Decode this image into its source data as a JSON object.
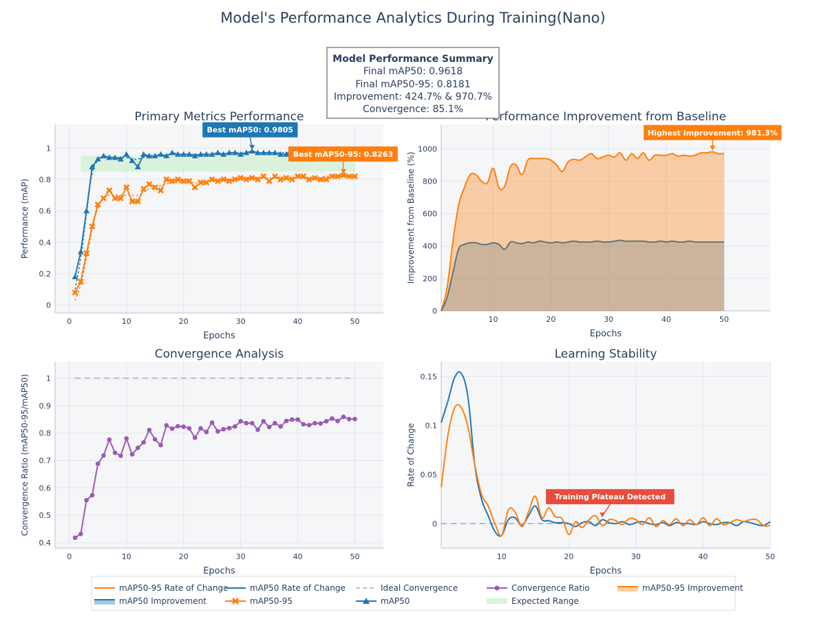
{
  "title": "Model's Performance Analytics During Training(Nano)",
  "summary": {
    "heading": "Model Performance Summary",
    "lines": [
      "Final mAP50: 0.9618",
      "Final mAP50-95: 0.8181",
      "Improvement: 424.7% & 970.7%",
      "Convergence: 85.1%"
    ]
  },
  "colors": {
    "map50": "#1f77b4",
    "map5095": "#ff7f0e",
    "convergence": "#9b59b6",
    "plateau": "#e74c3c",
    "expected": "#c8f0c8",
    "ideal": "#b0a4cc"
  },
  "legend": {
    "items": [
      {
        "label": "mAP50-95 Rate of Change",
        "kind": "line",
        "color": "#ff7f0e"
      },
      {
        "label": "mAP50 Rate of Change",
        "kind": "line",
        "color": "#1f77b4"
      },
      {
        "label": "Ideal Convergence",
        "kind": "dash",
        "color": "#b0a4cc"
      },
      {
        "label": "Convergence Ratio",
        "kind": "dot",
        "color": "#9b59b6"
      },
      {
        "label": "mAP50-95 Improvement",
        "kind": "fill",
        "color": "#ff7f0e"
      },
      {
        "label": "mAP50 Improvement",
        "kind": "fill",
        "color": "#1f77b4"
      },
      {
        "label": "mAP50-95",
        "kind": "cross",
        "color": "#ff7f0e"
      },
      {
        "label": "mAP50",
        "kind": "tri",
        "color": "#1f77b4"
      },
      {
        "label": "Expected Range",
        "kind": "band",
        "color": "#c8f0c8"
      }
    ]
  },
  "chart_data": [
    {
      "type": "line",
      "title": "Primary Metrics Performance",
      "xlabel": "Epochs",
      "ylabel": "Performance (mAP)",
      "xlim": [
        -2.5,
        55
      ],
      "ylim": [
        -0.05,
        1.15
      ],
      "xticks": [
        0,
        10,
        20,
        30,
        40,
        50
      ],
      "yticks": [
        0,
        0.2,
        0.4,
        0.6,
        0.8,
        1
      ],
      "grid": true,
      "expected_range": {
        "x": [
          2,
          50
        ],
        "y": [
          0.85,
          0.95
        ]
      },
      "x": [
        1,
        2,
        3,
        4,
        5,
        6,
        7,
        8,
        9,
        10,
        11,
        12,
        13,
        14,
        15,
        16,
        17,
        18,
        19,
        20,
        21,
        22,
        23,
        24,
        25,
        26,
        27,
        28,
        29,
        30,
        31,
        32,
        33,
        34,
        35,
        36,
        37,
        38,
        39,
        40,
        41,
        42,
        43,
        44,
        45,
        46,
        47,
        48,
        49,
        50
      ],
      "series": [
        {
          "name": "mAP50",
          "marker": "triangle",
          "values": [
            0.18,
            0.34,
            0.6,
            0.88,
            0.93,
            0.95,
            0.94,
            0.94,
            0.93,
            0.96,
            0.92,
            0.88,
            0.96,
            0.95,
            0.95,
            0.96,
            0.95,
            0.97,
            0.96,
            0.96,
            0.96,
            0.95,
            0.96,
            0.96,
            0.96,
            0.97,
            0.96,
            0.97,
            0.97,
            0.96,
            0.97,
            0.9805,
            0.97,
            0.97,
            0.97,
            0.97,
            0.96,
            0.96,
            0.97,
            0.96,
            0.97,
            0.96,
            0.96,
            0.97,
            0.96,
            0.96,
            0.96,
            0.97,
            0.96,
            0.96
          ]
        },
        {
          "name": "mAP50-95",
          "marker": "x",
          "values": [
            0.08,
            0.15,
            0.33,
            0.5,
            0.64,
            0.68,
            0.73,
            0.68,
            0.68,
            0.75,
            0.66,
            0.66,
            0.74,
            0.77,
            0.75,
            0.73,
            0.8,
            0.79,
            0.8,
            0.79,
            0.79,
            0.75,
            0.78,
            0.78,
            0.8,
            0.79,
            0.8,
            0.79,
            0.8,
            0.81,
            0.8,
            0.81,
            0.8,
            0.82,
            0.79,
            0.82,
            0.8,
            0.81,
            0.8,
            0.82,
            0.82,
            0.8,
            0.81,
            0.8,
            0.8,
            0.82,
            0.82,
            0.8263,
            0.82,
            0.82
          ]
        },
        {
          "name": "mAP50 trend",
          "values": [
            0.1,
            0.3,
            0.58,
            0.84,
            0.92,
            0.94,
            0.94,
            0.94,
            0.94,
            0.94,
            0.93,
            0.93,
            0.94,
            0.95,
            0.95,
            0.95,
            0.95,
            0.96,
            0.96,
            0.96,
            0.96,
            0.96,
            0.96,
            0.96,
            0.96,
            0.96,
            0.96,
            0.97,
            0.97,
            0.97,
            0.97,
            0.97,
            0.97,
            0.97,
            0.97,
            0.97,
            0.97,
            0.97,
            0.97,
            0.97,
            0.97,
            0.97,
            0.97,
            0.97,
            0.97,
            0.97,
            0.97,
            0.97,
            0.97,
            0.97
          ]
        },
        {
          "name": "mAP50-95 trend",
          "values": [
            0.03,
            0.13,
            0.3,
            0.48,
            0.62,
            0.68,
            0.7,
            0.7,
            0.7,
            0.7,
            0.7,
            0.7,
            0.72,
            0.74,
            0.75,
            0.76,
            0.77,
            0.78,
            0.78,
            0.78,
            0.78,
            0.78,
            0.78,
            0.79,
            0.79,
            0.79,
            0.8,
            0.8,
            0.8,
            0.8,
            0.81,
            0.81,
            0.81,
            0.81,
            0.81,
            0.81,
            0.81,
            0.81,
            0.81,
            0.81,
            0.81,
            0.81,
            0.81,
            0.81,
            0.82,
            0.82,
            0.82,
            0.82,
            0.82,
            0.82
          ]
        }
      ],
      "annotations": [
        {
          "text": "Best mAP50: 0.9805",
          "x": 32,
          "y": 0.9805,
          "color": "#1f77b4"
        },
        {
          "text": "Best mAP50-95: 0.8263",
          "x": 48,
          "y": 0.8263,
          "color": "#ff7f0e"
        }
      ]
    },
    {
      "type": "area",
      "title": "Performance Improvement from Baseline",
      "xlabel": "Epochs",
      "ylabel": "Improvement from Baseline (%)",
      "xlim": [
        1,
        58
      ],
      "ylim": [
        0,
        1150
      ],
      "xticks": [
        10,
        20,
        30,
        40,
        50
      ],
      "yticks": [
        0,
        200,
        400,
        600,
        800,
        1000
      ],
      "grid": true,
      "x": [
        1,
        2,
        3,
        4,
        5,
        6,
        7,
        8,
        9,
        10,
        11,
        12,
        13,
        14,
        15,
        16,
        17,
        18,
        19,
        20,
        21,
        22,
        23,
        24,
        25,
        26,
        27,
        28,
        29,
        30,
        31,
        32,
        33,
        34,
        35,
        36,
        37,
        38,
        39,
        40,
        41,
        42,
        43,
        44,
        45,
        46,
        47,
        48,
        49,
        50
      ],
      "series": [
        {
          "name": "mAP50-95 Improvement",
          "values": [
            0,
            140,
            420,
            650,
            760,
            840,
            840,
            800,
            790,
            880,
            760,
            770,
            890,
            900,
            840,
            930,
            940,
            940,
            940,
            930,
            900,
            860,
            920,
            935,
            930,
            950,
            970,
            940,
            950,
            960,
            950,
            975,
            930,
            970,
            940,
            975,
            930,
            960,
            960,
            960,
            970,
            955,
            960,
            955,
            960,
            975,
            975,
            981.3,
            970,
            970.7
          ]
        },
        {
          "name": "mAP50 Improvement",
          "values": [
            0,
            80,
            230,
            380,
            410,
            420,
            420,
            410,
            410,
            420,
            410,
            380,
            425,
            420,
            415,
            425,
            420,
            430,
            425,
            420,
            425,
            420,
            425,
            430,
            425,
            425,
            425,
            430,
            425,
            425,
            430,
            435,
            430,
            430,
            430,
            430,
            425,
            425,
            430,
            425,
            430,
            425,
            425,
            430,
            425,
            425,
            425,
            425,
            425,
            424.7
          ]
        }
      ],
      "annotations": [
        {
          "text": "Highest Improvement: 981.3%",
          "x": 48,
          "y": 981.3,
          "color": "#ff7f0e"
        }
      ]
    },
    {
      "type": "line",
      "title": "Convergence Analysis",
      "xlabel": "Epochs",
      "ylabel": "Convergence Ratio (mAP50-95/mAP50)",
      "xlim": [
        -2.5,
        55
      ],
      "ylim": [
        0.38,
        1.06
      ],
      "xticks": [
        0,
        10,
        20,
        30,
        40,
        50
      ],
      "yticks": [
        0.4,
        0.5,
        0.6,
        0.7,
        0.8,
        0.9,
        1
      ],
      "grid": true,
      "ideal": 1,
      "x": [
        1,
        2,
        3,
        4,
        5,
        6,
        7,
        8,
        9,
        10,
        11,
        12,
        13,
        14,
        15,
        16,
        17,
        18,
        19,
        20,
        21,
        22,
        23,
        24,
        25,
        26,
        27,
        28,
        29,
        30,
        31,
        32,
        33,
        34,
        35,
        36,
        37,
        38,
        39,
        40,
        41,
        42,
        43,
        44,
        45,
        46,
        47,
        48,
        49,
        50
      ],
      "series": [
        {
          "name": "Convergence Ratio",
          "values": [
            0.418,
            0.432,
            0.555,
            0.573,
            0.688,
            0.718,
            0.776,
            0.728,
            0.717,
            0.78,
            0.722,
            0.746,
            0.766,
            0.811,
            0.777,
            0.756,
            0.828,
            0.816,
            0.825,
            0.823,
            0.817,
            0.783,
            0.817,
            0.804,
            0.838,
            0.806,
            0.814,
            0.818,
            0.824,
            0.843,
            0.836,
            0.836,
            0.812,
            0.843,
            0.822,
            0.836,
            0.824,
            0.844,
            0.849,
            0.849,
            0.832,
            0.829,
            0.836,
            0.835,
            0.843,
            0.853,
            0.844,
            0.859,
            0.851,
            0.851
          ]
        }
      ]
    },
    {
      "type": "line",
      "title": "Learning Stability",
      "xlabel": "Epochs",
      "ylabel": "Rate of Change",
      "xlim": [
        1,
        50
      ],
      "ylim": [
        -0.025,
        0.165
      ],
      "xticks": [
        10,
        20,
        30,
        40,
        50
      ],
      "yticks": [
        0,
        0.05,
        0.1,
        0.15
      ],
      "grid": true,
      "ideal": 0,
      "x": [
        1,
        2,
        3,
        4,
        5,
        6,
        7,
        8,
        9,
        10,
        11,
        12,
        13,
        14,
        15,
        16,
        17,
        18,
        19,
        20,
        21,
        22,
        23,
        24,
        25,
        26,
        27,
        28,
        29,
        30,
        31,
        32,
        33,
        34,
        35,
        36,
        37,
        38,
        39,
        40,
        41,
        42,
        43,
        44,
        45,
        46,
        47,
        48,
        49,
        50
      ],
      "series": [
        {
          "name": "mAP50 Rate of Change",
          "values": [
            0.103,
            0.125,
            0.149,
            0.153,
            0.128,
            0.06,
            0.025,
            0.008,
            -0.008,
            -0.012,
            0.004,
            0.006,
            -0.002,
            0.008,
            0.018,
            0.004,
            0.003,
            0.001,
            0.001,
            0.0,
            -0.003,
            0.001,
            0.002,
            -0.002,
            0.004,
            0.001,
            0.0,
            0.002,
            -0.001,
            0.001,
            0.002,
            0.0,
            -0.001,
            0.001,
            -0.002,
            0.001,
            0.0,
            0.0,
            -0.001,
            0.002,
            0.0,
            -0.001,
            0.001,
            0.001,
            -0.002,
            0.002,
            0.001,
            -0.001,
            -0.002,
            0.002
          ]
        },
        {
          "name": "mAP50-95 Rate of Change",
          "values": [
            0.037,
            0.09,
            0.118,
            0.118,
            0.098,
            0.06,
            0.03,
            0.018,
            0.0,
            -0.012,
            0.014,
            0.012,
            -0.003,
            0.012,
            0.028,
            0.006,
            0.016,
            0.007,
            0.005,
            -0.011,
            0.002,
            -0.004,
            0.004,
            0.008,
            -0.002,
            0.004,
            0.003,
            -0.001,
            0.005,
            0.004,
            -0.001,
            0.006,
            -0.003,
            0.003,
            -0.001,
            0.005,
            -0.002,
            0.004,
            -0.001,
            0.006,
            -0.002,
            0.005,
            -0.001,
            0.001,
            0.004,
            0.002,
            0.004,
            0.004,
            -0.002,
            -0.002
          ]
        }
      ],
      "annotations": [
        {
          "text": "Training Plateau Detected",
          "x": 25,
          "y": 0.005,
          "color": "#e74c3c"
        }
      ]
    }
  ]
}
